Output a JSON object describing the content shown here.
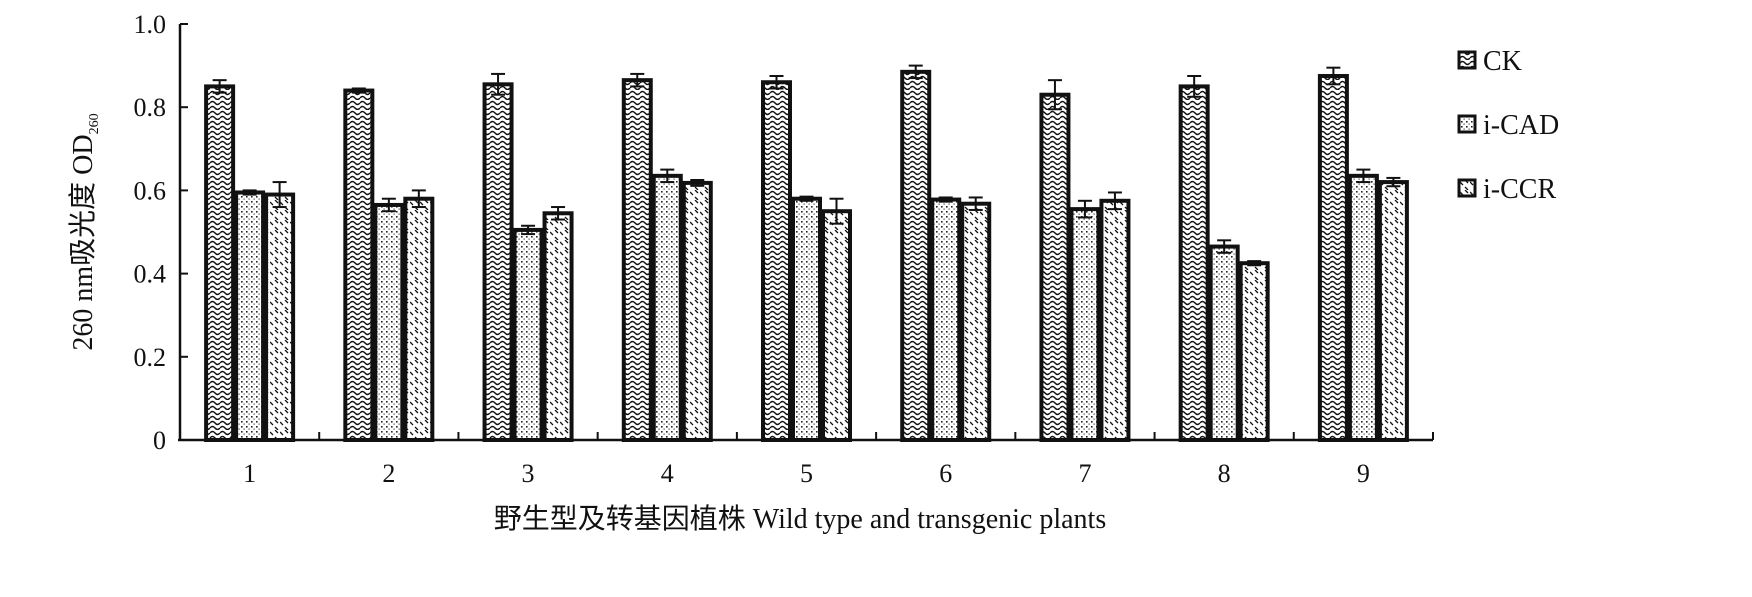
{
  "chart_data": {
    "type": "bar",
    "categories": [
      "1",
      "2",
      "3",
      "4",
      "5",
      "6",
      "7",
      "8",
      "9"
    ],
    "series": [
      {
        "name": "CK",
        "values": [
          0.85,
          0.84,
          0.855,
          0.865,
          0.86,
          0.885,
          0.83,
          0.85,
          0.875
        ],
        "errors": [
          0.015,
          0.005,
          0.025,
          0.015,
          0.015,
          0.015,
          0.035,
          0.025,
          0.02
        ],
        "pattern": "wave"
      },
      {
        "name": "i-CAD",
        "values": [
          0.595,
          0.565,
          0.505,
          0.635,
          0.58,
          0.578,
          0.555,
          0.465,
          0.635
        ],
        "errors": [
          0.005,
          0.015,
          0.01,
          0.015,
          0.005,
          0.005,
          0.02,
          0.015,
          0.015
        ],
        "pattern": "dots"
      },
      {
        "name": "i-CCR",
        "values": [
          0.59,
          0.58,
          0.545,
          0.618,
          0.55,
          0.568,
          0.575,
          0.425,
          0.62
        ],
        "errors": [
          0.03,
          0.02,
          0.015,
          0.007,
          0.03,
          0.015,
          0.02,
          0.005,
          0.01
        ],
        "pattern": "slash"
      }
    ],
    "ylabel": "260 nm吸光度 OD",
    "ylabel_subscript": "260",
    "xlabel": "野生型及转基因植株 Wild type and transgenic plants",
    "ylim": [
      0,
      1.0
    ],
    "yticks": [
      "0",
      "0.2",
      "0.4",
      "0.6",
      "0.8",
      "1.0"
    ],
    "grid": false,
    "legend_position": "right"
  }
}
